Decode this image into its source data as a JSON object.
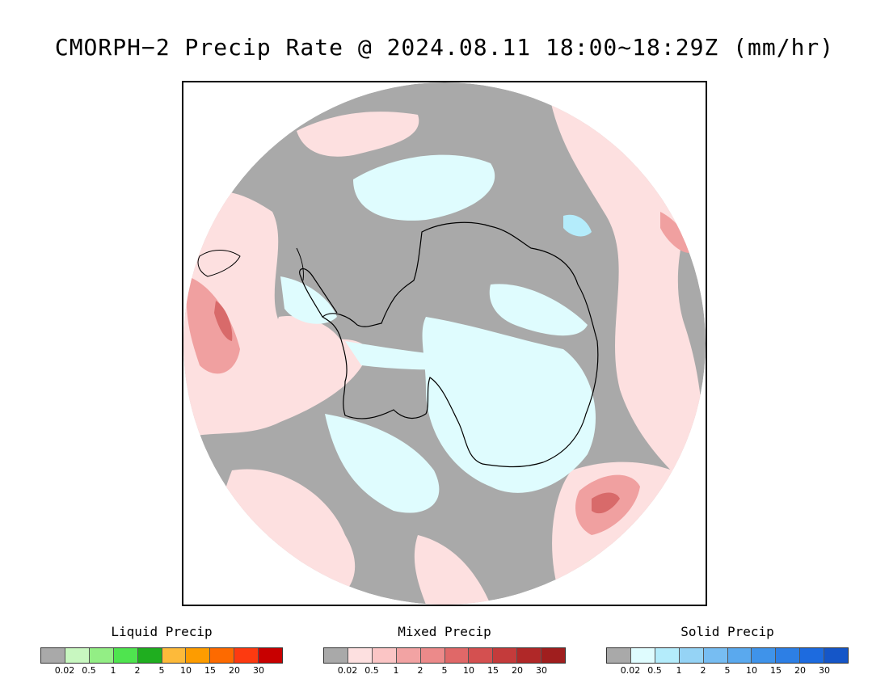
{
  "title": "CMORPH−2 Precip Rate @ 2024.08.11 18:00~18:29Z (mm/hr)",
  "map": {
    "projection": "south-polar-stereographic",
    "colors": {
      "no_precip": "#a9a9a9",
      "mixed_light": "#fde0e0",
      "mixed_medium": "#f0a0a0",
      "mixed_heavy": "#d86a6a",
      "solid_light": "#dffcfe",
      "solid_medium": "#b4ecfb",
      "liquid_light": "#c8f7c0",
      "coastline": "#000000"
    }
  },
  "legends": [
    {
      "title": "Liquid Precip",
      "colors": [
        "#a9a9a9",
        "#c8f7c0",
        "#93ee85",
        "#4fe44f",
        "#1fae1f",
        "#fdba3a",
        "#fd9c00",
        "#fd6a00",
        "#fd3a10",
        "#c80000"
      ],
      "ticks": [
        "0.02",
        "0.5",
        "1",
        "2",
        "5",
        "10",
        "15",
        "20",
        "30"
      ]
    },
    {
      "title": "Mixed Precip",
      "colors": [
        "#a9a9a9",
        "#fde0e0",
        "#fbc5c5",
        "#f2a3a3",
        "#ec8a8a",
        "#e06868",
        "#d45050",
        "#c43b3b",
        "#b02828",
        "#a01e1e"
      ],
      "ticks": [
        "0.02",
        "0.5",
        "1",
        "2",
        "5",
        "10",
        "15",
        "20",
        "30"
      ]
    },
    {
      "title": "Solid Precip",
      "colors": [
        "#a9a9a9",
        "#dffcfe",
        "#b4ecfb",
        "#95d3f5",
        "#77bdf2",
        "#5aa9ee",
        "#3f93ea",
        "#2d7fe5",
        "#1d6bdf",
        "#1556c8"
      ],
      "ticks": [
        "0.02",
        "0.5",
        "1",
        "2",
        "5",
        "10",
        "15",
        "20",
        "30"
      ]
    }
  ]
}
